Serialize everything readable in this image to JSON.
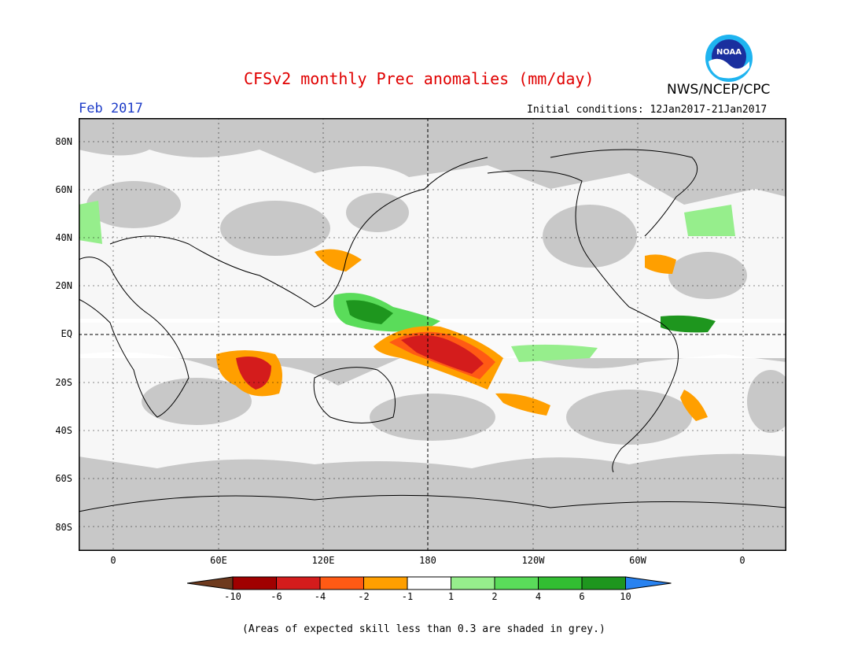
{
  "title": "CFSv2 monthly Prec anomalies (mm/day)",
  "period": "Feb 2017",
  "agency": "NWS/NCEP/CPC",
  "logo_text": "NOAA",
  "initial_conditions": "Initial conditions: 12Jan2017-21Jan2017",
  "map": {
    "lat_labels": [
      "80N",
      "60N",
      "40N",
      "20N",
      "EQ",
      "20S",
      "40S",
      "60S",
      "80S"
    ],
    "lon_labels": [
      "0",
      "60E",
      "120E",
      "180",
      "120W",
      "60W",
      "0"
    ],
    "colors": {
      "background": "#ffffff",
      "grey_low_skill": "#c8c8c8",
      "dry_-10": "#6e3a1e",
      "dry_-6": "#a00000",
      "dry_-4": "#d41c1c",
      "dry_-2": "#ff5a14",
      "dry_-1": "#ff9f00",
      "neutral": "#ffffff",
      "wet_1": "#96ee8c",
      "wet_2": "#5adc5a",
      "wet_4": "#32be32",
      "wet_6": "#1e961e",
      "wet_10": "#2882f0"
    }
  },
  "colorbar": {
    "labels": [
      "-10",
      "-6",
      "-4",
      "-2",
      "-1",
      "1",
      "2",
      "4",
      "6",
      "10"
    ],
    "colors": [
      "#6e3a1e",
      "#a00000",
      "#d41c1c",
      "#ff5a14",
      "#ff9f00",
      "#ffffff",
      "#96ee8c",
      "#5adc5a",
      "#32be32",
      "#1e961e",
      "#2882f0"
    ]
  },
  "footnote": "(Areas of expected skill less than 0.3 are shaded in grey.)"
}
